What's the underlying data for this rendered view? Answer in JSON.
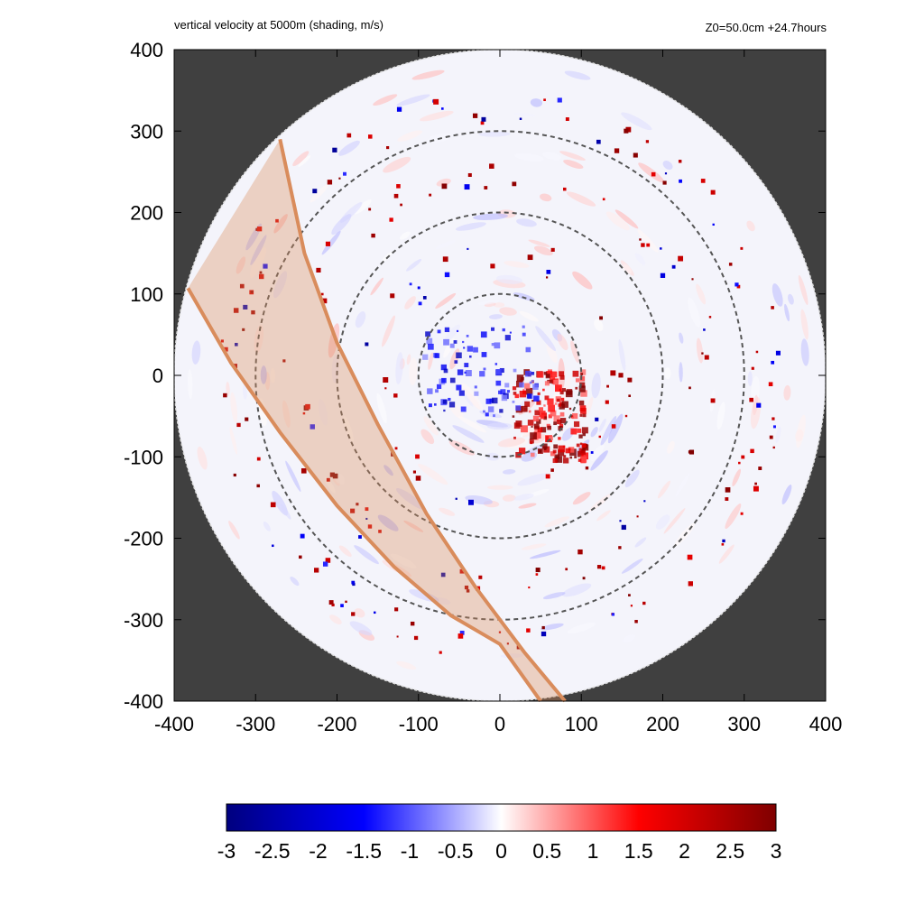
{
  "header": {
    "title_left": "vertical velocity at 5000m (shading, m/s)",
    "title_right": "Z0=50.0cm  +24.7hours"
  },
  "chart_data": {
    "type": "heatmap",
    "title": "vertical velocity at 5000m (shading, m/s)",
    "subtitle": "Z0=50.0cm  +24.7hours",
    "xlim": [
      -400,
      400
    ],
    "ylim": [
      -400,
      400
    ],
    "x_ticks": [
      "-400",
      "-300",
      "-200",
      "-100",
      "0",
      "100",
      "200",
      "300",
      "400"
    ],
    "y_ticks": [
      "400",
      "300",
      "200",
      "100",
      "0",
      "-100",
      "-200",
      "-300",
      "-400"
    ],
    "domain_radius": 400,
    "range_rings": [
      100,
      200,
      300
    ],
    "outside_domain_color": "#404040",
    "colorbar": {
      "min": -3,
      "max": 3,
      "labels": [
        "-3",
        "-2.5",
        "-2",
        "-1.5",
        "-1",
        "-0.5",
        "0",
        "0.5",
        "1",
        "1.5",
        "2",
        "2.5",
        "3"
      ],
      "stops": [
        "#00007f",
        "#0000ff",
        "#ffffff",
        "#ff0000",
        "#7f0000"
      ]
    },
    "swath": {
      "color": "#d98c5c",
      "left_edge": [
        [
          -383,
          107
        ],
        [
          -330,
          15
        ],
        [
          -270,
          -70
        ],
        [
          -200,
          -160
        ],
        [
          -130,
          -235
        ],
        [
          -60,
          -295
        ],
        [
          0,
          -330
        ],
        [
          50,
          -400
        ]
      ],
      "right_edge": [
        [
          -270,
          290
        ],
        [
          -240,
          150
        ],
        [
          -200,
          40
        ],
        [
          -150,
          -60
        ],
        [
          -90,
          -170
        ],
        [
          -30,
          -260
        ],
        [
          30,
          -340
        ],
        [
          80,
          -400
        ]
      ]
    },
    "features": {
      "core_updraft_center": [
        60,
        -50
      ],
      "eyewall_downdraft_center": [
        -50,
        5
      ],
      "rainband_radii": [
        330,
        250,
        150
      ]
    }
  }
}
